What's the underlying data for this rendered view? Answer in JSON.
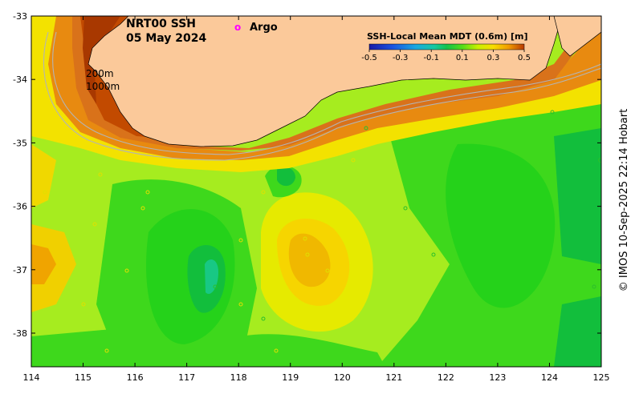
{
  "title": {
    "line1": "NRT00 SSH",
    "line2": "05 May 2024"
  },
  "legend": {
    "argo_marker": "o",
    "argo_label": "Argo",
    "colorbar_title": "SSH-Local Mean MDT (0.6m) [m]",
    "colorbar_ticks": [
      "-0.5",
      "-0.3",
      "-0.1",
      "0.1",
      "0.3",
      "0.5"
    ]
  },
  "contour_labels": [
    "200m",
    "1000m"
  ],
  "axes": {
    "x_ticks": [
      "114",
      "115",
      "116",
      "117",
      "118",
      "119",
      "120",
      "121",
      "122",
      "123",
      "124",
      "125"
    ],
    "y_ticks": [
      "-33",
      "-34",
      "-35",
      "-36",
      "-37",
      "-38"
    ]
  },
  "credit": "© IMOS 10-Sep-2025 22:14 Hobart",
  "colors": {
    "land": "#fbc99a",
    "deep_orange": "#c24a00",
    "orange": "#e88a10",
    "yellow": "#f3e200",
    "light_green": "#a6ec1f",
    "green": "#25d21a",
    "mid_green": "#12be3c",
    "argo": "#ff00ff"
  }
}
